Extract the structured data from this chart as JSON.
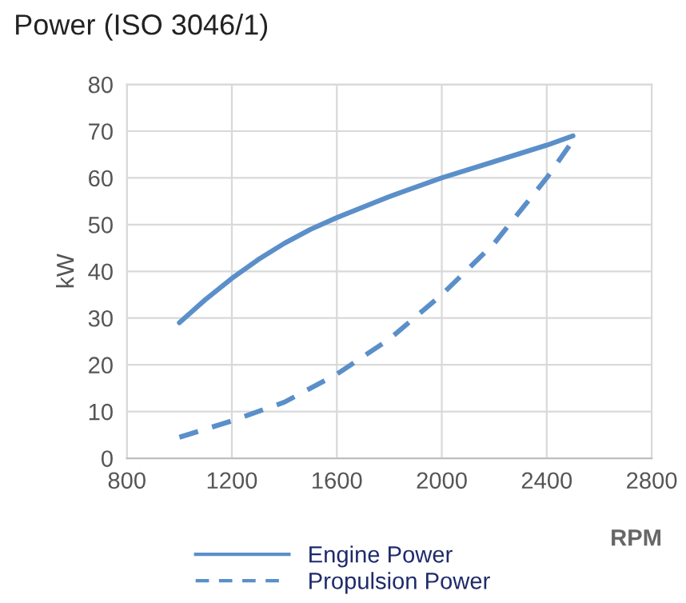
{
  "chart_data": {
    "type": "line",
    "title": "Power (ISO 3046/1)",
    "xlabel": "RPM",
    "ylabel": "kW",
    "xlim": [
      800,
      2800
    ],
    "xticks": [
      800,
      1200,
      1600,
      2000,
      2400,
      2800
    ],
    "ylim": [
      0,
      80
    ],
    "yticks": [
      0,
      10,
      20,
      30,
      40,
      50,
      60,
      70,
      80
    ],
    "grid": true,
    "legend": "bottom",
    "marker": "none",
    "series": [
      {
        "name": "Engine Power",
        "color": "#5b8fc9",
        "line_style": "solid",
        "x": [
          1000,
          1100,
          1200,
          1300,
          1400,
          1500,
          1600,
          1800,
          2000,
          2200,
          2400,
          2500
        ],
        "values": [
          29,
          34,
          38.5,
          42.5,
          46,
          49,
          51.5,
          56,
          60,
          63.5,
          67,
          69
        ]
      },
      {
        "name": "Propulsion Power",
        "color": "#5b8fc9",
        "line_style": "dashed",
        "x": [
          1000,
          1200,
          1400,
          1600,
          1800,
          2000,
          2200,
          2400,
          2500
        ],
        "values": [
          4.5,
          8,
          12,
          18,
          25.5,
          35,
          46,
          60,
          68
        ]
      }
    ]
  }
}
